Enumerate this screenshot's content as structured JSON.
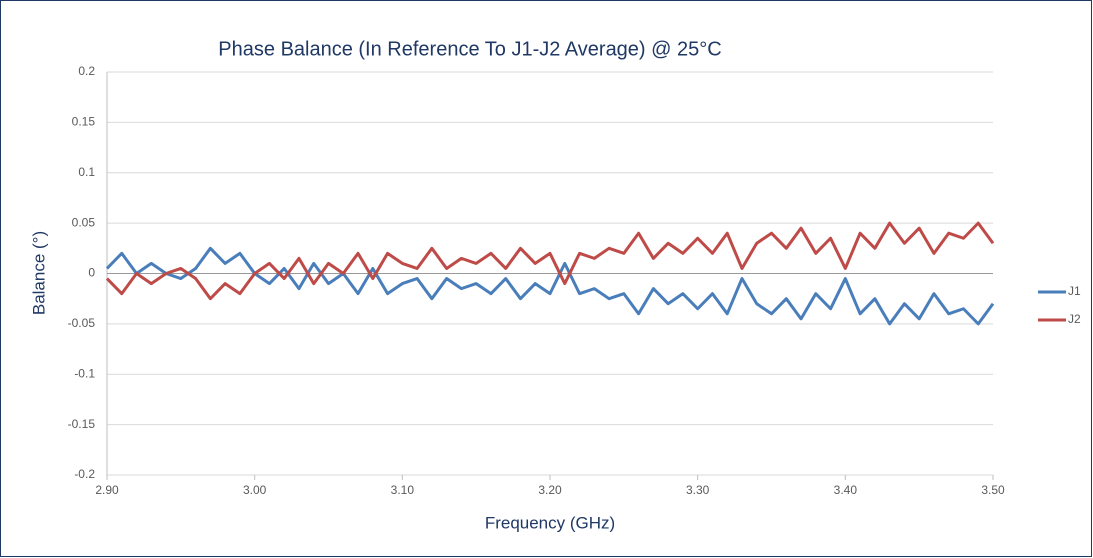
{
  "chart_data": {
    "type": "line",
    "title": "Phase Balance (In Reference To J1-J2 Average) @ 25°C",
    "x_label": "Frequency (GHz)",
    "y_label": "Balance (°)",
    "x": [
      2.9,
      2.91,
      2.92,
      2.93,
      2.94,
      2.95,
      2.96,
      2.97,
      2.98,
      2.99,
      3.0,
      3.01,
      3.02,
      3.03,
      3.04,
      3.05,
      3.06,
      3.07,
      3.08,
      3.09,
      3.1,
      3.11,
      3.12,
      3.13,
      3.14,
      3.15,
      3.16,
      3.17,
      3.18,
      3.19,
      3.2,
      3.21,
      3.22,
      3.23,
      3.24,
      3.25,
      3.26,
      3.27,
      3.28,
      3.29,
      3.3,
      3.31,
      3.32,
      3.33,
      3.34,
      3.35,
      3.36,
      3.37,
      3.38,
      3.39,
      3.4,
      3.41,
      3.42,
      3.43,
      3.44,
      3.45,
      3.46,
      3.47,
      3.48,
      3.49,
      3.5
    ],
    "series": [
      {
        "name": "J1",
        "color": "#4a7ebb",
        "values": [
          0.005,
          0.02,
          0.0,
          0.01,
          0.0,
          -0.005,
          0.005,
          0.025,
          0.01,
          0.02,
          0.0,
          -0.01,
          0.005,
          -0.015,
          0.01,
          -0.01,
          0.0,
          -0.02,
          0.005,
          -0.02,
          -0.01,
          -0.005,
          -0.025,
          -0.005,
          -0.015,
          -0.01,
          -0.02,
          -0.005,
          -0.025,
          -0.01,
          -0.02,
          0.01,
          -0.02,
          -0.015,
          -0.025,
          -0.02,
          -0.04,
          -0.015,
          -0.03,
          -0.02,
          -0.035,
          -0.02,
          -0.04,
          -0.005,
          -0.03,
          -0.04,
          -0.025,
          -0.045,
          -0.02,
          -0.035,
          -0.005,
          -0.04,
          -0.025,
          -0.05,
          -0.03,
          -0.045,
          -0.02,
          -0.04,
          -0.035,
          -0.05,
          -0.03
        ]
      },
      {
        "name": "J2",
        "color": "#be4b48",
        "values": [
          -0.005,
          -0.02,
          0.0,
          -0.01,
          0.0,
          0.005,
          -0.005,
          -0.025,
          -0.01,
          -0.02,
          0.0,
          0.01,
          -0.005,
          0.015,
          -0.01,
          0.01,
          0.0,
          0.02,
          -0.005,
          0.02,
          0.01,
          0.005,
          0.025,
          0.005,
          0.015,
          0.01,
          0.02,
          0.005,
          0.025,
          0.01,
          0.02,
          -0.01,
          0.02,
          0.015,
          0.025,
          0.02,
          0.04,
          0.015,
          0.03,
          0.02,
          0.035,
          0.02,
          0.04,
          0.005,
          0.03,
          0.04,
          0.025,
          0.045,
          0.02,
          0.035,
          0.005,
          0.04,
          0.025,
          0.05,
          0.03,
          0.045,
          0.02,
          0.04,
          0.035,
          0.05,
          0.03
        ]
      }
    ],
    "xlim": [
      2.9,
      3.5
    ],
    "xticks": [
      {
        "value": 2.9,
        "label": "2.90"
      },
      {
        "value": 3.0,
        "label": "3.00"
      },
      {
        "value": 3.1,
        "label": "3.10"
      },
      {
        "value": 3.2,
        "label": "3.20"
      },
      {
        "value": 3.3,
        "label": "3.30"
      },
      {
        "value": 3.4,
        "label": "3.40"
      },
      {
        "value": 3.5,
        "label": "3.50"
      }
    ],
    "ylim": [
      -0.2,
      0.2
    ],
    "yticks": [
      -0.2,
      -0.15,
      -0.1,
      -0.05,
      0,
      0.05,
      0.1,
      0.15,
      0.2
    ],
    "grid": true,
    "legend": "right"
  }
}
